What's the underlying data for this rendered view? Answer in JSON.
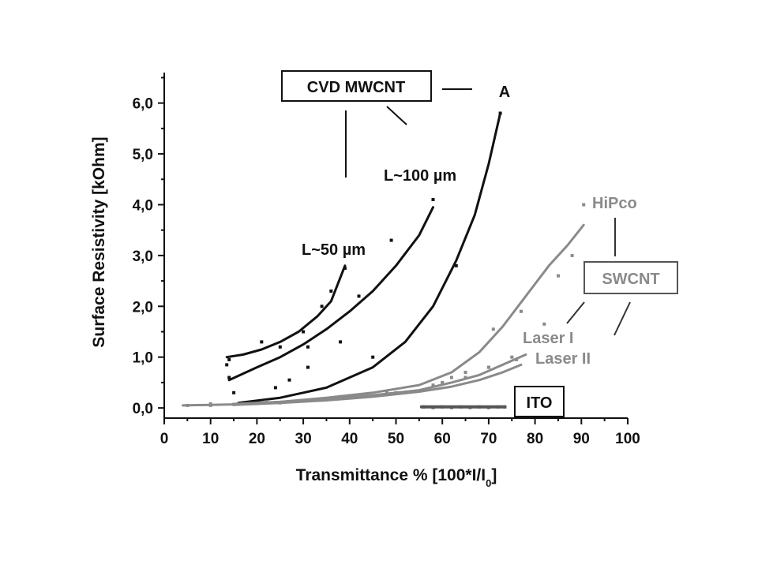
{
  "chart_data": {
    "type": "scatter",
    "xlabel": "Transmittance % [100*I/I0]",
    "xlabel_main": "Transmittance % [100*I/I",
    "xlabel_sub": "0",
    "xlabel_close": "]",
    "ylabel": "Surface Resistivity [kOhm]",
    "xlim": [
      0,
      100
    ],
    "ylim": [
      -0.2,
      6.6
    ],
    "xticks": [
      "0",
      "10",
      "20",
      "30",
      "40",
      "50",
      "60",
      "70",
      "80",
      "90",
      "100"
    ],
    "yticks": [
      "0,0",
      "1,0",
      "2,0",
      "3,0",
      "4,0",
      "5,0",
      "6,0"
    ],
    "grid": false,
    "colors": {
      "mwcnt": "#111111",
      "swcnt": "#8a8a8a",
      "ito": "#555555"
    },
    "annotations": {
      "cvd_mwcnt": "CVD MWCNT",
      "a": "A",
      "l100": "L~100 µm",
      "l50": "L~50 µm",
      "hipco": "HiPco",
      "swcnt": "SWCNT",
      "laser1": "Laser I",
      "laser2": "Laser II",
      "ito": "ITO"
    },
    "series": [
      {
        "group": "mwcnt",
        "points": [
          [
            13.5,
            0.85
          ],
          [
            14,
            0.95
          ],
          [
            21,
            1.3
          ],
          [
            25,
            1.2
          ],
          [
            30,
            1.5
          ],
          [
            34,
            2.0
          ],
          [
            36,
            2.3
          ],
          [
            39,
            2.75
          ]
        ],
        "fit": [
          [
            13.5,
            1.0
          ],
          [
            17,
            1.05
          ],
          [
            21,
            1.15
          ],
          [
            25,
            1.3
          ],
          [
            29,
            1.5
          ],
          [
            33,
            1.8
          ],
          [
            36,
            2.1
          ],
          [
            39,
            2.8
          ]
        ]
      },
      {
        "group": "mwcnt",
        "points": [
          [
            14,
            0.6
          ],
          [
            24,
            0.4
          ],
          [
            27,
            0.55
          ],
          [
            31,
            0.8
          ],
          [
            31,
            1.2
          ],
          [
            38,
            1.3
          ],
          [
            42,
            2.2
          ],
          [
            49,
            3.3
          ],
          [
            58,
            4.1
          ]
        ],
        "fit": [
          [
            14,
            0.55
          ],
          [
            20,
            0.8
          ],
          [
            25,
            1.0
          ],
          [
            30,
            1.25
          ],
          [
            35,
            1.55
          ],
          [
            40,
            1.9
          ],
          [
            45,
            2.3
          ],
          [
            50,
            2.8
          ],
          [
            55,
            3.4
          ],
          [
            58,
            3.95
          ]
        ]
      },
      {
        "group": "mwcnt",
        "points": [
          [
            15,
            0.3
          ],
          [
            45,
            1.0
          ],
          [
            63,
            2.8
          ],
          [
            72.5,
            5.8
          ]
        ],
        "fit": [
          [
            16,
            0.1
          ],
          [
            25,
            0.2
          ],
          [
            35,
            0.4
          ],
          [
            45,
            0.8
          ],
          [
            52,
            1.3
          ],
          [
            58,
            2.0
          ],
          [
            63,
            2.9
          ],
          [
            67,
            3.8
          ],
          [
            70,
            4.8
          ],
          [
            72.5,
            5.8
          ]
        ]
      },
      {
        "group": "swcnt",
        "points": [
          [
            5,
            0.05
          ],
          [
            15,
            0.07
          ],
          [
            30,
            0.15
          ],
          [
            48,
            0.3
          ],
          [
            60,
            0.5
          ],
          [
            65,
            0.7
          ],
          [
            71,
            1.55
          ],
          [
            77,
            1.9
          ],
          [
            82,
            1.65
          ],
          [
            85,
            2.6
          ],
          [
            88,
            3.0
          ],
          [
            90.5,
            4.0
          ]
        ],
        "fit": [
          [
            4,
            0.05
          ],
          [
            15,
            0.07
          ],
          [
            25,
            0.12
          ],
          [
            35,
            0.2
          ],
          [
            45,
            0.3
          ],
          [
            55,
            0.45
          ],
          [
            62,
            0.7
          ],
          [
            68,
            1.1
          ],
          [
            73,
            1.6
          ],
          [
            78,
            2.2
          ],
          [
            83,
            2.8
          ],
          [
            87,
            3.2
          ],
          [
            90.5,
            3.6
          ]
        ]
      },
      {
        "group": "swcnt",
        "points": [
          [
            10,
            0.05
          ],
          [
            25,
            0.1
          ],
          [
            40,
            0.2
          ],
          [
            52,
            0.3
          ],
          [
            62,
            0.6
          ],
          [
            70,
            0.8
          ],
          [
            75,
            1.0
          ]
        ],
        "fit": [
          [
            15,
            0.08
          ],
          [
            25,
            0.12
          ],
          [
            35,
            0.18
          ],
          [
            45,
            0.25
          ],
          [
            55,
            0.35
          ],
          [
            62,
            0.5
          ],
          [
            68,
            0.65
          ],
          [
            73,
            0.85
          ],
          [
            78,
            1.05
          ]
        ]
      },
      {
        "group": "swcnt",
        "points": [
          [
            10,
            0.08
          ],
          [
            22,
            0.12
          ],
          [
            38,
            0.22
          ],
          [
            50,
            0.3
          ],
          [
            58,
            0.45
          ],
          [
            65,
            0.6
          ],
          [
            70,
            0.8
          ],
          [
            76,
            0.95
          ]
        ],
        "fit": [
          [
            15,
            0.06
          ],
          [
            25,
            0.1
          ],
          [
            35,
            0.15
          ],
          [
            45,
            0.22
          ],
          [
            55,
            0.32
          ],
          [
            62,
            0.42
          ],
          [
            68,
            0.55
          ],
          [
            73,
            0.7
          ],
          [
            77,
            0.85
          ]
        ]
      },
      {
        "group": "ito",
        "points": [
          [
            56,
            0.02
          ],
          [
            58,
            0.01
          ],
          [
            60,
            0.02
          ],
          [
            62,
            0.01
          ],
          [
            64,
            0.02
          ],
          [
            66,
            0.01
          ],
          [
            68,
            0.02
          ],
          [
            70,
            0.01
          ],
          [
            72,
            0.02
          ],
          [
            73.5,
            0.02
          ]
        ],
        "fit": [
          [
            55.5,
            0.02
          ],
          [
            73.5,
            0.02
          ]
        ]
      }
    ]
  }
}
